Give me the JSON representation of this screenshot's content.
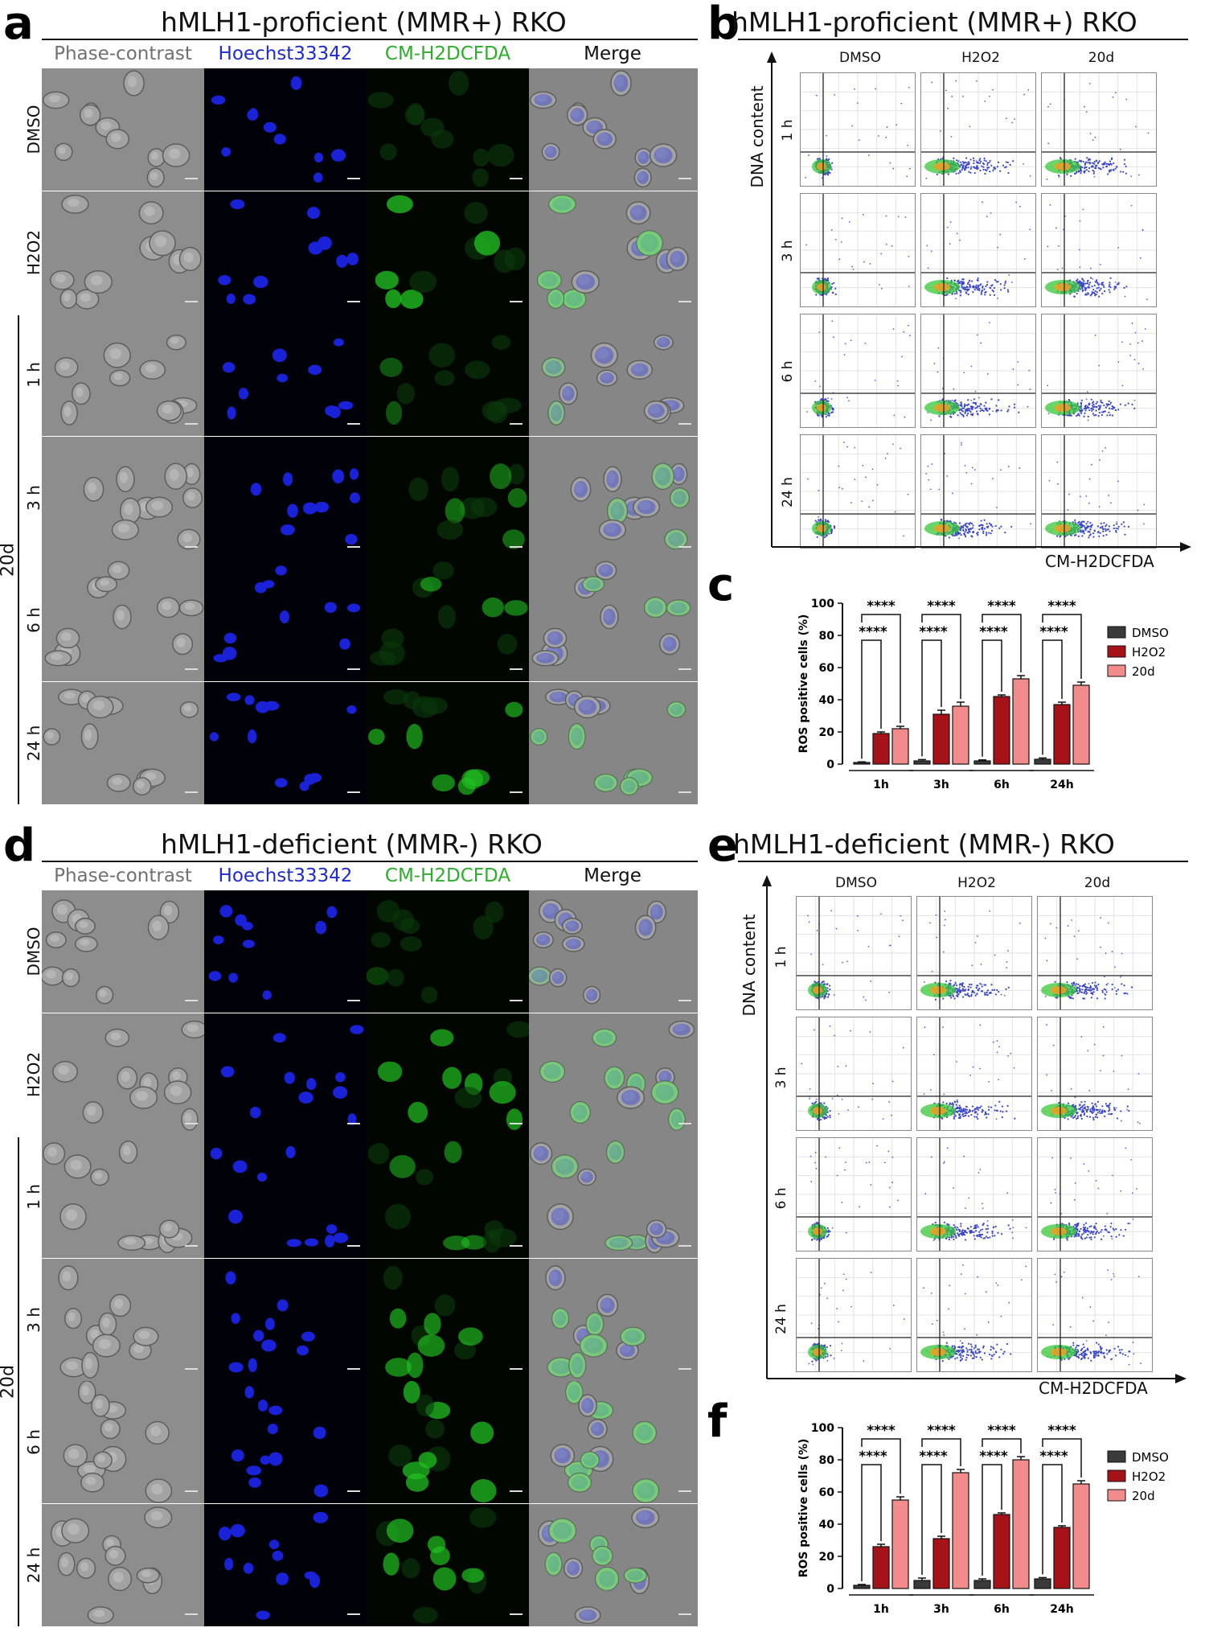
{
  "figure": {
    "a": {
      "letter": "a",
      "title": "hMLH1-proficient (MMR+) RKO",
      "columns": [
        "Phase-contrast",
        "Hoechst33342",
        "CM-H2DCFDA",
        "Merge"
      ],
      "rows": [
        "DMSO",
        "H2O2",
        "1 h",
        "3 h",
        "6 h",
        "24 h"
      ],
      "group_label": "20d",
      "green_level": [
        0.05,
        0.75,
        0.25,
        0.4,
        0.5,
        0.6
      ]
    },
    "b": {
      "letter": "b",
      "title": "hMLH1-proficient (MMR+) RKO",
      "columns": [
        "DMSO",
        "H2O2",
        "20d"
      ],
      "rows": [
        "1 h",
        "3 h",
        "6 h",
        "24 h"
      ],
      "y_label": "DNA content",
      "x_label": "CM-H2DCFDA"
    },
    "c": {
      "letter": "c",
      "chart_data": {
        "type": "bar",
        "categories": [
          "1h",
          "3h",
          "6h",
          "24h"
        ],
        "series": [
          {
            "name": "DMSO",
            "values": [
              1,
              2,
              2,
              3
            ],
            "errors": [
              0.4,
              0.8,
              0.6,
              0.8
            ],
            "color": "#3a3a3a"
          },
          {
            "name": "H2O2",
            "values": [
              19,
              31,
              42,
              37
            ],
            "errors": [
              1,
              2.5,
              1,
              1.5
            ],
            "color": "#a51218"
          },
          {
            "name": "20d",
            "values": [
              22,
              36,
              53,
              49
            ],
            "errors": [
              1.5,
              2.5,
              2,
              2
            ],
            "color": "#f28b8b"
          }
        ],
        "ylabel": "ROS positive cells (%)",
        "ylim": [
          0,
          100
        ],
        "yticks": [
          0,
          20,
          40,
          60,
          80,
          100
        ],
        "significance": "****",
        "legend_position": "right"
      }
    },
    "d": {
      "letter": "d",
      "title": "hMLH1-deficient (MMR-) RKO",
      "columns": [
        "Phase-contrast",
        "Hoechst33342",
        "CM-H2DCFDA",
        "Merge"
      ],
      "rows": [
        "DMSO",
        "H2O2",
        "1 h",
        "3 h",
        "6 h",
        "24 h"
      ],
      "group_label": "20d",
      "green_level": [
        0.05,
        0.65,
        0.45,
        0.6,
        0.7,
        0.65
      ]
    },
    "e": {
      "letter": "e",
      "title": "hMLH1-deficient (MMR-) RKO",
      "columns": [
        "DMSO",
        "H2O2",
        "20d"
      ],
      "rows": [
        "1 h",
        "3 h",
        "6 h",
        "24 h"
      ],
      "y_label": "DNA content",
      "x_label": "CM-H2DCFDA"
    },
    "f": {
      "letter": "f",
      "chart_data": {
        "type": "bar",
        "categories": [
          "1h",
          "3h",
          "6h",
          "24h"
        ],
        "series": [
          {
            "name": "DMSO",
            "values": [
              2,
              5,
              5,
              6
            ],
            "errors": [
              0.5,
              1.5,
              1,
              0.8
            ],
            "color": "#3a3a3a"
          },
          {
            "name": "H2O2",
            "values": [
              26,
              31,
              46,
              38
            ],
            "errors": [
              1.5,
              1.5,
              1,
              1
            ],
            "color": "#a51218"
          },
          {
            "name": "20d",
            "values": [
              55,
              72,
              80,
              65
            ],
            "errors": [
              2,
              2,
              2,
              2
            ],
            "color": "#f28b8b"
          }
        ],
        "ylabel": "ROS positive cells (%)",
        "ylim": [
          0,
          100
        ],
        "yticks": [
          0,
          20,
          40,
          60,
          80,
          100
        ],
        "significance": "****",
        "legend_position": "right"
      }
    }
  }
}
